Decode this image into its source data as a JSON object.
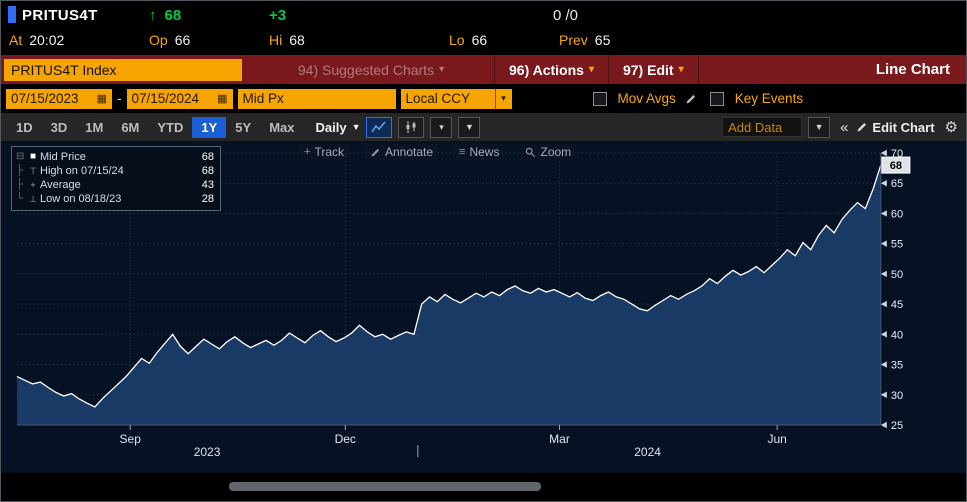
{
  "header": {
    "ticker": "PRITUS4T",
    "last": "68",
    "change": "+3",
    "fraction": "0 /0",
    "at_label": "At",
    "at_value": "20:02",
    "op_label": "Op",
    "op_value": "66",
    "hi_label": "Hi",
    "hi_value": "68",
    "lo_label": "Lo",
    "lo_value": "66",
    "prev_label": "Prev",
    "prev_value": "65"
  },
  "menubar": {
    "security": "PRITUS4T Index",
    "suggested": "94) Suggested Charts",
    "actions": "96) Actions",
    "edit": "97) Edit",
    "chart_type": "Line Chart"
  },
  "controls": {
    "date_from": "07/15/2023",
    "dash": "-",
    "date_to": "07/15/2024",
    "field": "Mid Px",
    "currency": "Local CCY",
    "mov_avgs": "Mov Avgs",
    "key_events": "Key Events"
  },
  "tabs": {
    "ranges": [
      "1D",
      "3D",
      "1M",
      "6M",
      "YTD",
      "1Y",
      "5Y",
      "Max"
    ],
    "selected": "1Y",
    "period": "Daily",
    "add_data_placeholder": "Add Data",
    "edit_chart": "Edit Chart"
  },
  "legend": {
    "items": [
      {
        "tree": "tree_first",
        "marker": "marker_square",
        "label": "Mid Price",
        "value": "68"
      },
      {
        "tree": "tree_mid",
        "marker": "marker_high",
        "label": "High on 07/15/24",
        "value": "68"
      },
      {
        "tree": "tree_mid",
        "marker": "marker_avg",
        "label": "Average",
        "value": "43"
      },
      {
        "tree": "tree_end",
        "marker": "marker_low",
        "label": "Low on 08/18/23",
        "value": "28"
      }
    ]
  },
  "tools": [
    {
      "name": "track",
      "label": "Track"
    },
    {
      "name": "annotate",
      "label": "Annotate"
    },
    {
      "name": "news",
      "label": "News"
    },
    {
      "name": "zoom",
      "label": "Zoom"
    }
  ],
  "icons": {
    "up_arrow": "↑",
    "calendar": "▦",
    "dropdown": "▾",
    "dropdown_big": "▼",
    "double_chevron_left": "«",
    "gear": "⚙",
    "news": "≡",
    "track": "+",
    "tree_first": "⊟",
    "tree_mid": "├",
    "tree_end": "└",
    "marker_square": "■",
    "marker_high": "⊤",
    "marker_avg": "+",
    "marker_low": "⊥"
  },
  "colors": {
    "amber": "#f6a500",
    "amber_text": "#f9a800",
    "green": "#00cc44",
    "menu_red": "#7a191d",
    "muted_red_text": "#b07a7a",
    "tab_blue": "#1c5fd4",
    "chart_bg": "#061124",
    "chart_fill": "#1a3a66",
    "chart_line": "#ffffff",
    "badge_bg": "#dfe3e8"
  },
  "chart_data": {
    "type": "area",
    "title": "PRITUS4T Index Mid Px 1Y Daily",
    "x_start": "07/15/2023",
    "x_end": "07/15/2024",
    "ylim": [
      25,
      70
    ],
    "yticks": [
      25,
      30,
      35,
      40,
      45,
      50,
      55,
      60,
      65,
      70
    ],
    "last_price": 68,
    "high": {
      "date": "07/15/24",
      "value": 68
    },
    "low": {
      "date": "08/18/23",
      "value": 28
    },
    "average": 43,
    "x_ticks": [
      {
        "label": "Sep",
        "f": 0.131
      },
      {
        "label": "Dec",
        "f": 0.38
      },
      {
        "label": "Mar",
        "f": 0.628
      },
      {
        "label": "Jun",
        "f": 0.88
      }
    ],
    "year_labels": [
      {
        "label": "2023",
        "f": 0.22
      },
      {
        "label": "2024",
        "f": 0.73
      }
    ],
    "year_separator_f": 0.464,
    "values": [
      33.0,
      32.4,
      31.8,
      32.1,
      31.2,
      30.4,
      29.8,
      30.2,
      29.3,
      28.6,
      28.0,
      29.4,
      30.6,
      31.8,
      33.0,
      34.5,
      36.0,
      35.2,
      37.0,
      38.5,
      40.0,
      38.0,
      36.8,
      38.0,
      39.2,
      38.4,
      37.6,
      38.8,
      39.6,
      38.6,
      37.8,
      38.4,
      39.0,
      38.2,
      39.0,
      40.2,
      39.4,
      38.6,
      39.8,
      40.6,
      39.6,
      38.8,
      39.4,
      40.2,
      41.5,
      40.4,
      39.6,
      40.0,
      39.2,
      39.8,
      40.4,
      40.0,
      45.0,
      46.2,
      45.4,
      46.6,
      45.8,
      45.2,
      46.0,
      46.8,
      46.2,
      47.0,
      46.4,
      47.4,
      48.0,
      47.2,
      46.8,
      47.6,
      47.0,
      47.4,
      46.8,
      46.2,
      46.9,
      46.0,
      45.6,
      46.4,
      47.0,
      46.2,
      45.8,
      45.0,
      44.2,
      43.9,
      44.8,
      45.6,
      46.4,
      45.8,
      46.6,
      47.2,
      48.0,
      49.2,
      48.4,
      49.6,
      50.6,
      49.8,
      50.4,
      51.2,
      50.2,
      51.4,
      52.6,
      54.0,
      53.0,
      55.2,
      54.0,
      56.4,
      58.0,
      56.8,
      59.0,
      60.5,
      61.8,
      60.8,
      64.0,
      68.0
    ]
  }
}
